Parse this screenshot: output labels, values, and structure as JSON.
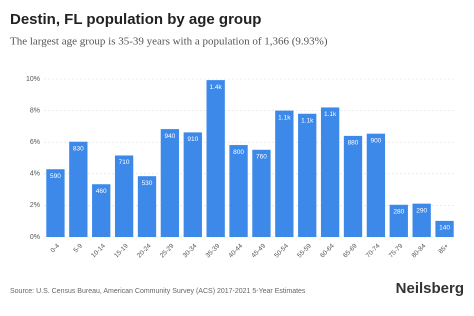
{
  "chart_data": {
    "type": "bar",
    "title": "Destin, FL population by age group",
    "subtitle": "The largest age group is 35-39 years with a population of 1,366 (9.93%)",
    "categories": [
      "0-4",
      "5-9",
      "10-14",
      "15-19",
      "20-24",
      "25-29",
      "30-34",
      "35-39",
      "40-44",
      "45-49",
      "50-54",
      "55-59",
      "60-64",
      "65-69",
      "70-74",
      "75-79",
      "80-84",
      "85+"
    ],
    "values": [
      4.29,
      6.03,
      3.34,
      5.16,
      3.85,
      6.83,
      6.62,
      9.93,
      5.82,
      5.52,
      8.0,
      7.8,
      8.2,
      6.4,
      6.54,
      2.04,
      2.11,
      1.02
    ],
    "bar_labels": [
      "590",
      "830",
      "460",
      "710",
      "530",
      "940",
      "910",
      "1.4k",
      "800",
      "760",
      "1.1k",
      "1.1k",
      "1.1k",
      "880",
      "900",
      "280",
      "290",
      "140"
    ],
    "color": "#3d89ea",
    "ylim": [
      0,
      10
    ],
    "yticks": [
      {
        "value": 0,
        "label": "0%"
      },
      {
        "value": 2,
        "label": "2%"
      },
      {
        "value": 4,
        "label": "4%"
      },
      {
        "value": 6,
        "label": "6%"
      },
      {
        "value": 8,
        "label": "8%"
      },
      {
        "value": 10,
        "label": "10%"
      }
    ],
    "grid": true,
    "source": "Source: U.S. Census Bureau, American Community Survey (ACS) 2017-2021 5-Year Estimates",
    "brand": "Neilsberg"
  }
}
